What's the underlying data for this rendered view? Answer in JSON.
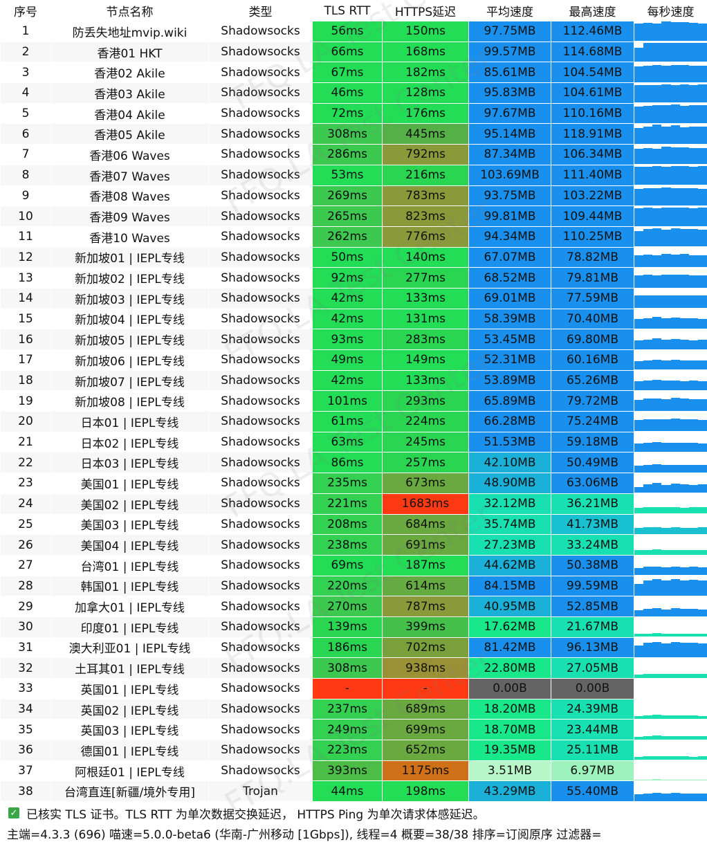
{
  "headers": [
    "序号",
    "节点名称",
    "类型",
    "TLS RTT",
    "HTTPS延迟",
    "平均速度",
    "最高速度",
    "每秒速度"
  ],
  "rows": [
    {
      "idx": "1",
      "name": "防丢失地址mvip.wiki",
      "type": "Shadowsocks",
      "tls": "56ms",
      "https": "150ms",
      "avg": "97.75MB",
      "max": "112.46MB",
      "tc": "#22dd55",
      "hc": "#22dd55",
      "ac": "#1a90ee",
      "mc": "#1a90ee",
      "spark": [
        0.9,
        0.95,
        0.92,
        1,
        0.96,
        0.98,
        0.95,
        0.9
      ]
    },
    {
      "idx": "2",
      "name": "香港01 HKT",
      "type": "Shadowsocks",
      "tls": "66ms",
      "https": "168ms",
      "avg": "99.57MB",
      "max": "114.68MB",
      "tc": "#22dd55",
      "hc": "#22dd55",
      "ac": "#1a90ee",
      "mc": "#1a90ee",
      "spark": [
        0.7,
        0.95,
        0.95,
        0.97,
        0.96,
        0.95,
        0.98,
        0.95
      ]
    },
    {
      "idx": "3",
      "name": "香港02 Akile",
      "type": "Shadowsocks",
      "tls": "67ms",
      "https": "182ms",
      "avg": "85.61MB",
      "max": "104.54MB",
      "tc": "#22dd55",
      "hc": "#22dd55",
      "ac": "#1a90ee",
      "mc": "#1a90ee",
      "spark": [
        0.8,
        0.85,
        0.9,
        0.85,
        0.88,
        0.9,
        0.86,
        0.84
      ]
    },
    {
      "idx": "4",
      "name": "香港03 Akile",
      "type": "Shadowsocks",
      "tls": "46ms",
      "https": "128ms",
      "avg": "95.83MB",
      "max": "104.61MB",
      "tc": "#22dd55",
      "hc": "#22dd55",
      "ac": "#1a90ee",
      "mc": "#1a90ee",
      "spark": [
        0.9,
        0.92,
        0.9,
        0.95,
        0.92,
        0.94,
        0.9,
        0.93
      ]
    },
    {
      "idx": "5",
      "name": "香港04 Akile",
      "type": "Shadowsocks",
      "tls": "72ms",
      "https": "176ms",
      "avg": "97.67MB",
      "max": "110.16MB",
      "tc": "#22dd55",
      "hc": "#22dd55",
      "ac": "#1a90ee",
      "mc": "#1a90ee",
      "spark": [
        0.85,
        0.9,
        0.95,
        0.92,
        0.96,
        0.9,
        0.95,
        0.92
      ]
    },
    {
      "idx": "6",
      "name": "香港05 Akile",
      "type": "Shadowsocks",
      "tls": "308ms",
      "https": "445ms",
      "avg": "95.14MB",
      "max": "118.91MB",
      "tc": "#3dc850",
      "hc": "#55b048",
      "ac": "#1a90ee",
      "mc": "#1a90ee",
      "spark": [
        0.8,
        0.9,
        0.98,
        0.9,
        0.95,
        0.85,
        0.9,
        0.88
      ]
    },
    {
      "idx": "7",
      "name": "香港06 Waves",
      "type": "Shadowsocks",
      "tls": "286ms",
      "https": "792ms",
      "avg": "87.34MB",
      "max": "106.34MB",
      "tc": "#3dc850",
      "hc": "#8a9a3a",
      "ac": "#1a90ee",
      "mc": "#1a90ee",
      "spark": [
        0.8,
        0.85,
        0.82,
        0.9,
        0.86,
        0.88,
        0.84,
        0.85
      ]
    },
    {
      "idx": "8",
      "name": "香港07 Waves",
      "type": "Shadowsocks",
      "tls": "53ms",
      "https": "216ms",
      "avg": "103.69MB",
      "max": "111.40MB",
      "tc": "#22dd55",
      "hc": "#2ad552",
      "ac": "#1a90ee",
      "mc": "#1a90ee",
      "spark": [
        0.92,
        0.95,
        0.96,
        0.95,
        0.97,
        0.96,
        0.95,
        0.96
      ]
    },
    {
      "idx": "9",
      "name": "香港08 Waves",
      "type": "Shadowsocks",
      "tls": "269ms",
      "https": "783ms",
      "avg": "93.75MB",
      "max": "103.22MB",
      "tc": "#3dc850",
      "hc": "#8a9a3a",
      "ac": "#1a90ee",
      "mc": "#1a90ee",
      "spark": [
        0.85,
        0.9,
        0.88,
        0.92,
        0.9,
        0.88,
        0.9,
        0.86
      ]
    },
    {
      "idx": "10",
      "name": "香港09 Waves",
      "type": "Shadowsocks",
      "tls": "265ms",
      "https": "823ms",
      "avg": "99.81MB",
      "max": "109.44MB",
      "tc": "#3dc850",
      "hc": "#8a9a3a",
      "ac": "#1a90ee",
      "mc": "#1a90ee",
      "spark": [
        0.9,
        0.95,
        0.92,
        0.96,
        0.94,
        0.95,
        0.93,
        0.95
      ]
    },
    {
      "idx": "11",
      "name": "香港10 Waves",
      "type": "Shadowsocks",
      "tls": "262ms",
      "https": "776ms",
      "avg": "94.34MB",
      "max": "110.25MB",
      "tc": "#3dc850",
      "hc": "#8a9a3a",
      "ac": "#1a90ee",
      "mc": "#1a90ee",
      "spark": [
        0.8,
        0.9,
        0.92,
        0.88,
        0.94,
        0.9,
        0.9,
        0.88
      ]
    },
    {
      "idx": "12",
      "name": "新加坡01 | IEPL专线",
      "type": "Shadowsocks",
      "tls": "50ms",
      "https": "140ms",
      "avg": "67.07MB",
      "max": "78.82MB",
      "tc": "#22dd55",
      "hc": "#22dd55",
      "ac": "#1a90ee",
      "mc": "#1a90ee",
      "spark": [
        0.6,
        0.65,
        0.62,
        0.66,
        0.64,
        0.66,
        0.6,
        0.62
      ]
    },
    {
      "idx": "13",
      "name": "新加坡02 | IEPL专线",
      "type": "Shadowsocks",
      "tls": "92ms",
      "https": "277ms",
      "avg": "68.52MB",
      "max": "79.81MB",
      "tc": "#22dd55",
      "hc": "#2ad552",
      "ac": "#1a90ee",
      "mc": "#1a90ee",
      "spark": [
        0.62,
        0.66,
        0.64,
        0.68,
        0.65,
        0.66,
        0.64,
        0.63
      ]
    },
    {
      "idx": "14",
      "name": "新加坡03 | IEPL专线",
      "type": "Shadowsocks",
      "tls": "42ms",
      "https": "133ms",
      "avg": "69.01MB",
      "max": "77.59MB",
      "tc": "#22dd55",
      "hc": "#22dd55",
      "ac": "#1a90ee",
      "mc": "#1a90ee",
      "spark": [
        0.64,
        0.66,
        0.65,
        0.67,
        0.66,
        0.65,
        0.66,
        0.64
      ]
    },
    {
      "idx": "15",
      "name": "新加坡04 | IEPL专线",
      "type": "Shadowsocks",
      "tls": "42ms",
      "https": "131ms",
      "avg": "58.39MB",
      "max": "70.40MB",
      "tc": "#22dd55",
      "hc": "#22dd55",
      "ac": "#1a90ee",
      "mc": "#1a90ee",
      "spark": [
        0.5,
        0.55,
        0.6,
        0.52,
        0.58,
        0.54,
        0.55,
        0.5
      ]
    },
    {
      "idx": "16",
      "name": "新加坡05 | IEPL专线",
      "type": "Shadowsocks",
      "tls": "93ms",
      "https": "283ms",
      "avg": "53.45MB",
      "max": "69.80MB",
      "tc": "#22dd55",
      "hc": "#2ad552",
      "ac": "#1a90ee",
      "mc": "#1a90ee",
      "spark": [
        0.45,
        0.5,
        0.55,
        0.48,
        0.52,
        0.5,
        0.46,
        0.5
      ]
    },
    {
      "idx": "17",
      "name": "新加坡06 | IEPL专线",
      "type": "Shadowsocks",
      "tls": "49ms",
      "https": "149ms",
      "avg": "52.31MB",
      "max": "60.16MB",
      "tc": "#22dd55",
      "hc": "#22dd55",
      "ac": "#1a90ee",
      "mc": "#1a90ee",
      "spark": [
        0.45,
        0.48,
        0.5,
        0.47,
        0.5,
        0.48,
        0.46,
        0.48
      ]
    },
    {
      "idx": "18",
      "name": "新加坡07 | IEPL专线",
      "type": "Shadowsocks",
      "tls": "42ms",
      "https": "133ms",
      "avg": "53.89MB",
      "max": "65.26MB",
      "tc": "#22dd55",
      "hc": "#22dd55",
      "ac": "#1a90ee",
      "mc": "#1a90ee",
      "spark": [
        0.46,
        0.5,
        0.52,
        0.49,
        0.5,
        0.48,
        0.5,
        0.47
      ]
    },
    {
      "idx": "19",
      "name": "新加坡08 | IEPL专线",
      "type": "Shadowsocks",
      "tls": "101ms",
      "https": "293ms",
      "avg": "65.89MB",
      "max": "79.72MB",
      "tc": "#22dd55",
      "hc": "#2ad552",
      "ac": "#1a90ee",
      "mc": "#1a90ee",
      "spark": [
        0.55,
        0.62,
        0.65,
        0.6,
        0.66,
        0.62,
        0.6,
        0.58
      ]
    },
    {
      "idx": "20",
      "name": "日本01 | IEPL专线",
      "type": "Shadowsocks",
      "tls": "61ms",
      "https": "224ms",
      "avg": "66.28MB",
      "max": "75.24MB",
      "tc": "#22dd55",
      "hc": "#2ad552",
      "ac": "#1a90ee",
      "mc": "#1a90ee",
      "spark": [
        0.58,
        0.62,
        0.64,
        0.62,
        0.65,
        0.63,
        0.62,
        0.6
      ]
    },
    {
      "idx": "21",
      "name": "日本02 | IEPL专线",
      "type": "Shadowsocks",
      "tls": "63ms",
      "https": "245ms",
      "avg": "51.53MB",
      "max": "59.18MB",
      "tc": "#22dd55",
      "hc": "#2ad552",
      "ac": "#1a90ee",
      "mc": "#1a90ee",
      "spark": [
        0.45,
        0.48,
        0.5,
        0.48,
        0.47,
        0.46,
        0.48,
        0.45
      ]
    },
    {
      "idx": "22",
      "name": "日本03 | IEPL专线",
      "type": "Shadowsocks",
      "tls": "86ms",
      "https": "257ms",
      "avg": "42.10MB",
      "max": "50.49MB",
      "tc": "#22dd55",
      "hc": "#2ad552",
      "ac": "#1ab0d8",
      "mc": "#1a90ee",
      "spark": [
        0.36,
        0.4,
        0.42,
        0.38,
        0.4,
        0.39,
        0.38,
        0.4
      ]
    },
    {
      "idx": "23",
      "name": "美国01 | IEPL专线",
      "type": "Shadowsocks",
      "tls": "235ms",
      "https": "673ms",
      "avg": "48.90MB",
      "max": "63.06MB",
      "tc": "#33d052",
      "hc": "#6aa840",
      "ac": "#1ab0d8",
      "mc": "#1a90ee",
      "spark": [
        0.3,
        0.45,
        0.5,
        0.42,
        0.48,
        0.45,
        0.4,
        0.44
      ]
    },
    {
      "idx": "24",
      "name": "美国02 | IEPL专线",
      "type": "Shadowsocks",
      "tls": "221ms",
      "https": "1683ms",
      "avg": "32.12MB",
      "max": "36.21MB",
      "tc": "#33d052",
      "hc": "#ff3a12",
      "ac": "#18e0b0",
      "mc": "#18e0b0",
      "spark": [
        0.3,
        0.32,
        0.33,
        0.31,
        0.32,
        0.3,
        0.32,
        0.31
      ]
    },
    {
      "idx": "25",
      "name": "美国03 | IEPL专线",
      "type": "Shadowsocks",
      "tls": "208ms",
      "https": "684ms",
      "avg": "35.74MB",
      "max": "41.73MB",
      "tc": "#33d052",
      "hc": "#6aa840",
      "ac": "#18e0b0",
      "mc": "#18c0d0",
      "spark": [
        0.3,
        0.34,
        0.35,
        0.33,
        0.34,
        0.32,
        0.33,
        0.34
      ]
    },
    {
      "idx": "26",
      "name": "美国04 | IEPL专线",
      "type": "Shadowsocks",
      "tls": "238ms",
      "https": "691ms",
      "avg": "27.23MB",
      "max": "33.24MB",
      "tc": "#33d052",
      "hc": "#6aa840",
      "ac": "#18e0b0",
      "mc": "#18e0b0",
      "spark": [
        0.22,
        0.25,
        0.26,
        0.24,
        0.25,
        0.24,
        0.25,
        0.23
      ]
    },
    {
      "idx": "27",
      "name": "台湾01 | IEPL专线",
      "type": "Shadowsocks",
      "tls": "69ms",
      "https": "187ms",
      "avg": "44.62MB",
      "max": "50.38MB",
      "tc": "#22dd55",
      "hc": "#22dd55",
      "ac": "#1ab0d8",
      "mc": "#1a90ee",
      "spark": [
        0.38,
        0.42,
        0.43,
        0.4,
        0.42,
        0.41,
        0.42,
        0.4
      ]
    },
    {
      "idx": "28",
      "name": "韩国01 | IEPL专线",
      "type": "Shadowsocks",
      "tls": "220ms",
      "https": "614ms",
      "avg": "84.15MB",
      "max": "99.59MB",
      "tc": "#33d052",
      "hc": "#66aa42",
      "ac": "#1a90ee",
      "mc": "#1a90ee",
      "spark": [
        0.6,
        0.8,
        0.85,
        0.78,
        0.84,
        0.8,
        0.82,
        0.79
      ]
    },
    {
      "idx": "29",
      "name": "加拿大01 | IEPL专线",
      "type": "Shadowsocks",
      "tls": "270ms",
      "https": "787ms",
      "avg": "40.95MB",
      "max": "52.85MB",
      "tc": "#3dc850",
      "hc": "#8a9a3a",
      "ac": "#1ab0d8",
      "mc": "#1a90ee",
      "spark": [
        0.3,
        0.38,
        0.4,
        0.36,
        0.4,
        0.38,
        0.37,
        0.36
      ]
    },
    {
      "idx": "30",
      "name": "印度01 | IEPL专线",
      "type": "Shadowsocks",
      "tls": "139ms",
      "https": "399ms",
      "avg": "17.62MB",
      "max": "21.67MB",
      "tc": "#2ad552",
      "hc": "#44c04a",
      "ac": "#18e88a",
      "mc": "#18e0b0",
      "spark": [
        0.14,
        0.17,
        0.18,
        0.16,
        0.17,
        0.16,
        0.17,
        0.15
      ]
    },
    {
      "idx": "31",
      "name": "澳大利亚01 | IEPL专线",
      "type": "Shadowsocks",
      "tls": "186ms",
      "https": "702ms",
      "avg": "81.42MB",
      "max": "96.13MB",
      "tc": "#2ad552",
      "hc": "#7aa03c",
      "ac": "#1a90ee",
      "mc": "#1a90ee",
      "spark": [
        0.6,
        0.75,
        0.8,
        0.72,
        0.78,
        0.76,
        0.74,
        0.7
      ]
    },
    {
      "idx": "32",
      "name": "土耳其01 | IEPL专线",
      "type": "Shadowsocks",
      "tls": "308ms",
      "https": "938ms",
      "avg": "22.80MB",
      "max": "27.05MB",
      "tc": "#3dc850",
      "hc": "#9a9036",
      "ac": "#18e88a",
      "mc": "#18e0b0",
      "spark": [
        0.18,
        0.2,
        0.22,
        0.2,
        0.21,
        0.2,
        0.21,
        0.19
      ]
    },
    {
      "idx": "33",
      "name": "英国01 | IEPL专线",
      "type": "Shadowsocks",
      "tls": "-",
      "https": "-",
      "avg": "0.00B",
      "max": "0.00B",
      "tc": "#ff3a12",
      "hc": "#ff3a12",
      "ac": "#646464",
      "mc": "#646464",
      "spark": [
        0,
        0,
        0,
        0,
        0,
        0,
        0,
        0
      ]
    },
    {
      "idx": "34",
      "name": "英国02 | IEPL专线",
      "type": "Shadowsocks",
      "tls": "237ms",
      "https": "689ms",
      "avg": "18.20MB",
      "max": "24.39MB",
      "tc": "#33d052",
      "hc": "#6aa840",
      "ac": "#18e88a",
      "mc": "#18e0b0",
      "spark": [
        0.14,
        0.18,
        0.2,
        0.17,
        0.19,
        0.18,
        0.17,
        0.16
      ]
    },
    {
      "idx": "35",
      "name": "英国03 | IEPL专线",
      "type": "Shadowsocks",
      "tls": "249ms",
      "https": "699ms",
      "avg": "18.70MB",
      "max": "23.44MB",
      "tc": "#33d052",
      "hc": "#6aa840",
      "ac": "#18e88a",
      "mc": "#18e0b0",
      "spark": [
        0.15,
        0.18,
        0.19,
        0.17,
        0.18,
        0.17,
        0.18,
        0.16
      ]
    },
    {
      "idx": "36",
      "name": "德国01 | IEPL专线",
      "type": "Shadowsocks",
      "tls": "223ms",
      "https": "652ms",
      "avg": "19.35MB",
      "max": "25.11MB",
      "tc": "#33d052",
      "hc": "#6aa840",
      "ac": "#18e88a",
      "mc": "#18e0b0",
      "spark": [
        0.15,
        0.19,
        0.2,
        0.18,
        0.19,
        0.18,
        0.17,
        0.18
      ]
    },
    {
      "idx": "37",
      "name": "阿根廷01 | IEPL专线",
      "type": "Shadowsocks",
      "tls": "393ms",
      "https": "1175ms",
      "avg": "3.51MB",
      "max": "6.97MB",
      "tc": "#4cbe48",
      "hc": "#d07018",
      "ac": "#b8f8c8",
      "mc": "#9ef2bc",
      "spark": [
        0.03,
        0.05,
        0.06,
        0.04,
        0.05,
        0.04,
        0.05,
        0.04
      ]
    },
    {
      "idx": "38",
      "name": "台湾直连[新疆/境外专用]",
      "type": "Trojan",
      "tls": "44ms",
      "https": "198ms",
      "avg": "43.29MB",
      "max": "55.40MB",
      "tc": "#22dd55",
      "hc": "#22dd55",
      "ac": "#1ab0d8",
      "mc": "#1a90ee",
      "spark": [
        0.36,
        0.4,
        0.42,
        0.38,
        0.41,
        0.4,
        0.39,
        0.4
      ]
    }
  ],
  "footer": {
    "line1": "已核实 TLS 证书。TLS RTT 为单次数据交换延迟， HTTPS Ping 为单次请求体感延迟。",
    "line2": "主端=4.3.3 (696) 喵速=5.0.0-beta6 (华南-广州移动 [1Gbps]), 线程=4 概要=38/38 排序=订阅原序 过滤器="
  },
  "watermark": "FFQ.LA Test Center"
}
